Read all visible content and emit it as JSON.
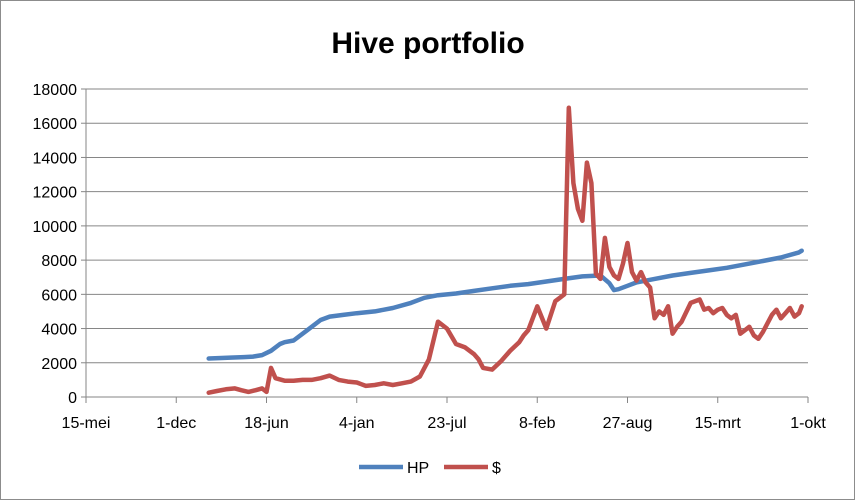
{
  "chart_data": {
    "type": "line",
    "title": "Hive portfolio",
    "xlabel": "",
    "ylabel": "",
    "ylim": [
      0,
      18000
    ],
    "y_ticks": [
      0,
      2000,
      4000,
      6000,
      8000,
      10000,
      12000,
      14000,
      16000,
      18000
    ],
    "y_tick_labels": [
      "0",
      "2000",
      "4000",
      "6000",
      "8000",
      "10000",
      "12000",
      "14000",
      "16000",
      "18000"
    ],
    "x_tick_labels": [
      "15-mei",
      "1-dec",
      "18-jun",
      "4-jan",
      "23-jul",
      "8-feb",
      "27-aug",
      "15-mrt",
      "1-okt"
    ],
    "grid": "horizontal",
    "legend_position": "bottom",
    "series": [
      {
        "name": "HP",
        "color": "#4f81bd",
        "x": [
          1.36,
          1.5,
          1.6,
          1.75,
          1.85,
          1.95,
          2.05,
          2.15,
          2.2,
          2.3,
          2.45,
          2.6,
          2.7,
          2.85,
          3.0,
          3.2,
          3.4,
          3.6,
          3.75,
          3.9,
          4.1,
          4.3,
          4.5,
          4.7,
          4.9,
          5.1,
          5.3,
          5.5,
          5.7,
          5.8,
          5.85,
          5.9,
          6.0,
          6.1,
          6.3,
          6.5,
          6.7,
          6.9,
          7.1,
          7.3,
          7.5,
          7.7,
          7.9,
          7.93
        ],
        "y": [
          2250,
          2280,
          2300,
          2330,
          2360,
          2450,
          2700,
          3100,
          3200,
          3300,
          3900,
          4500,
          4700,
          4800,
          4900,
          5000,
          5200,
          5500,
          5800,
          5950,
          6050,
          6200,
          6350,
          6500,
          6600,
          6750,
          6900,
          7050,
          7100,
          6650,
          6250,
          6300,
          6500,
          6700,
          6900,
          7100,
          7250,
          7400,
          7550,
          7750,
          7950,
          8150,
          8450,
          8550
        ]
      },
      {
        "name": "$",
        "color": "#c0504d",
        "x": [
          1.36,
          1.45,
          1.55,
          1.65,
          1.72,
          1.8,
          1.88,
          1.95,
          2.0,
          2.05,
          2.1,
          2.2,
          2.3,
          2.4,
          2.5,
          2.6,
          2.7,
          2.8,
          2.9,
          3.0,
          3.05,
          3.1,
          3.2,
          3.3,
          3.4,
          3.5,
          3.6,
          3.7,
          3.8,
          3.9,
          4.0,
          4.1,
          4.2,
          4.3,
          4.35,
          4.4,
          4.5,
          4.6,
          4.7,
          4.8,
          4.85,
          4.9,
          5.0,
          5.1,
          5.2,
          5.25,
          5.3,
          5.35,
          5.4,
          5.45,
          5.5,
          5.55,
          5.6,
          5.65,
          5.7,
          5.75,
          5.8,
          5.85,
          5.9,
          5.95,
          6.0,
          6.05,
          6.1,
          6.15,
          6.2,
          6.25,
          6.3,
          6.35,
          6.4,
          6.45,
          6.5,
          6.55,
          6.6,
          6.7,
          6.8,
          6.85,
          6.9,
          6.95,
          7.0,
          7.05,
          7.1,
          7.15,
          7.2,
          7.25,
          7.3,
          7.35,
          7.4,
          7.45,
          7.5,
          7.55,
          7.6,
          7.65,
          7.7,
          7.75,
          7.8,
          7.85,
          7.9,
          7.93
        ],
        "y": [
          250,
          350,
          450,
          500,
          400,
          300,
          400,
          500,
          300,
          1700,
          1100,
          950,
          950,
          1000,
          1000,
          1100,
          1250,
          1000,
          900,
          850,
          750,
          650,
          700,
          800,
          700,
          800,
          900,
          1200,
          2200,
          4400,
          4000,
          3100,
          2900,
          2500,
          2200,
          1700,
          1600,
          2100,
          2700,
          3200,
          3600,
          3900,
          5300,
          4000,
          5600,
          5800,
          6000,
          16900,
          12500,
          11000,
          10300,
          13700,
          12500,
          7200,
          6900,
          9300,
          7600,
          7100,
          6900,
          7800,
          9000,
          7300,
          6800,
          7300,
          6700,
          6400,
          4600,
          5000,
          4800,
          5300,
          3700,
          4100,
          4400,
          5500,
          5700,
          5100,
          5200,
          4900,
          5100,
          5200,
          4800,
          4600,
          4800,
          3700,
          3900,
          4100,
          3600,
          3400,
          3800,
          4300,
          4800,
          5100,
          4600,
          4900,
          5200,
          4700,
          4900,
          5300
        ]
      }
    ]
  }
}
